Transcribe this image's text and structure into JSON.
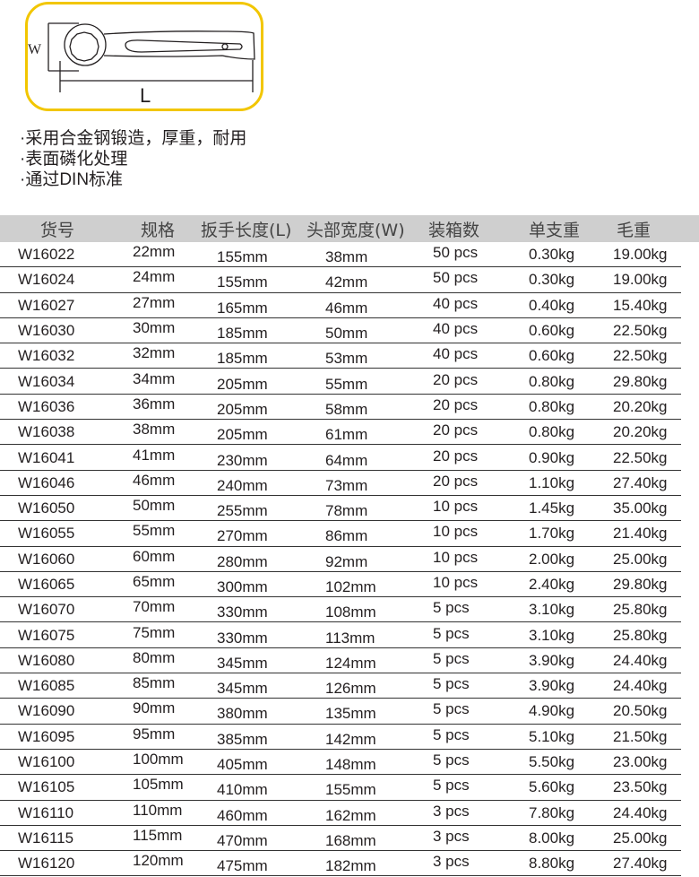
{
  "diagram": {
    "w_label": "W",
    "l_label": "L",
    "frame_color": "#f2c600"
  },
  "features": [
    "·采用合金钢锻造，厚重，耐用",
    "·表面磷化处理",
    "·通过DIN标准"
  ],
  "table": {
    "headers": [
      "货号",
      "规格",
      "扳手长度(L)",
      "头部宽度(W)",
      "装箱数",
      "单支重",
      "毛重"
    ],
    "rows": [
      [
        "W16022",
        "22mm",
        "155mm",
        "38mm",
        "50 pcs",
        "0.30kg",
        "19.00kg"
      ],
      [
        "W16024",
        "24mm",
        "155mm",
        "42mm",
        "50 pcs",
        "0.30kg",
        "19.00kg"
      ],
      [
        "W16027",
        "27mm",
        "165mm",
        "46mm",
        "40 pcs",
        "0.40kg",
        "15.40kg"
      ],
      [
        "W16030",
        "30mm",
        "185mm",
        "50mm",
        "40 pcs",
        "0.60kg",
        "22.50kg"
      ],
      [
        "W16032",
        "32mm",
        "185mm",
        "53mm",
        "40 pcs",
        "0.60kg",
        "22.50kg"
      ],
      [
        "W16034",
        "34mm",
        "205mm",
        "55mm",
        "20 pcs",
        "0.80kg",
        "29.80kg"
      ],
      [
        "W16036",
        "36mm",
        "205mm",
        "58mm",
        "20 pcs",
        "0.80kg",
        "20.20kg"
      ],
      [
        "W16038",
        "38mm",
        "205mm",
        "61mm",
        "20 pcs",
        "0.80kg",
        "20.20kg"
      ],
      [
        "W16041",
        "41mm",
        "230mm",
        "64mm",
        "20 pcs",
        "0.90kg",
        "22.50kg"
      ],
      [
        "W16046",
        "46mm",
        "240mm",
        "73mm",
        "20 pcs",
        "1.10kg",
        "27.40kg"
      ],
      [
        "W16050",
        "50mm",
        "255mm",
        "78mm",
        "10 pcs",
        "1.45kg",
        "35.00kg"
      ],
      [
        "W16055",
        "55mm",
        "270mm",
        "86mm",
        "10 pcs",
        "1.70kg",
        "21.40kg"
      ],
      [
        "W16060",
        "60mm",
        "280mm",
        "92mm",
        "10 pcs",
        "2.00kg",
        "25.00kg"
      ],
      [
        "W16065",
        "65mm",
        "300mm",
        "102mm",
        "10 pcs",
        "2.40kg",
        "29.80kg"
      ],
      [
        "W16070",
        "70mm",
        "330mm",
        "108mm",
        "5 pcs",
        "3.10kg",
        "25.80kg"
      ],
      [
        "W16075",
        "75mm",
        "330mm",
        "113mm",
        "5 pcs",
        "3.10kg",
        "25.80kg"
      ],
      [
        "W16080",
        "80mm",
        "345mm",
        "124mm",
        "5 pcs",
        "3.90kg",
        "24.40kg"
      ],
      [
        "W16085",
        "85mm",
        "345mm",
        "126mm",
        "5 pcs",
        "3.90kg",
        "24.40kg"
      ],
      [
        "W16090",
        "90mm",
        "380mm",
        "135mm",
        "5 pcs",
        "4.90kg",
        "20.50kg"
      ],
      [
        "W16095",
        "95mm",
        "385mm",
        "142mm",
        "5 pcs",
        "5.10kg",
        "21.50kg"
      ],
      [
        "W16100",
        "100mm",
        "405mm",
        "148mm",
        "5 pcs",
        "5.50kg",
        "23.00kg"
      ],
      [
        "W16105",
        "105mm",
        "410mm",
        "155mm",
        "5 pcs",
        "5.60kg",
        "23.50kg"
      ],
      [
        "W16110",
        "110mm",
        "460mm",
        "162mm",
        "3 pcs",
        "7.80kg",
        "24.40kg"
      ],
      [
        "W16115",
        "115mm",
        "470mm",
        "168mm",
        "3 pcs",
        "8.00kg",
        "25.00kg"
      ],
      [
        "W16120",
        "120mm",
        "475mm",
        "182mm",
        "3 pcs",
        "8.80kg",
        "27.40kg"
      ]
    ]
  }
}
